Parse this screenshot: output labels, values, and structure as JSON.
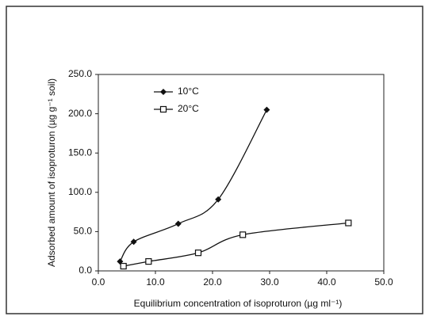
{
  "chart_data": {
    "type": "line",
    "x_label": "Equilibrium concentration of isoproturon (µg ml⁻¹)",
    "y_label": "Adsorbed amount of isoproturon (µg g⁻¹ soil)",
    "xlim": [
      0,
      50
    ],
    "ylim": [
      0,
      250
    ],
    "xticks": [
      {
        "value": 0,
        "label": "0.0"
      },
      {
        "value": 10,
        "label": "10.0"
      },
      {
        "value": 20,
        "label": "20.0"
      },
      {
        "value": 30,
        "label": "30.0"
      },
      {
        "value": 40,
        "label": "40.0"
      },
      {
        "value": 50,
        "label": "50.0"
      }
    ],
    "yticks": [
      {
        "value": 0,
        "label": "0.0"
      },
      {
        "value": 50,
        "label": "50.0"
      },
      {
        "value": 100,
        "label": "100.0"
      },
      {
        "value": 150,
        "label": "150.0"
      },
      {
        "value": 200,
        "label": "200.0"
      },
      {
        "value": 250,
        "label": "250.0"
      }
    ],
    "legend": "upper left",
    "series": [
      {
        "name": "10°C",
        "color": "#111111",
        "marker": "diamond",
        "x": [
          3.8,
          6.2,
          14,
          21,
          29.5
        ],
        "values": [
          12,
          37,
          60,
          91,
          205
        ]
      },
      {
        "name": "20°C",
        "color": "#111111",
        "marker": "square",
        "x": [
          4.4,
          8.8,
          17.5,
          25.3,
          43.8
        ],
        "values": [
          6,
          12,
          23,
          46,
          61
        ]
      }
    ]
  }
}
